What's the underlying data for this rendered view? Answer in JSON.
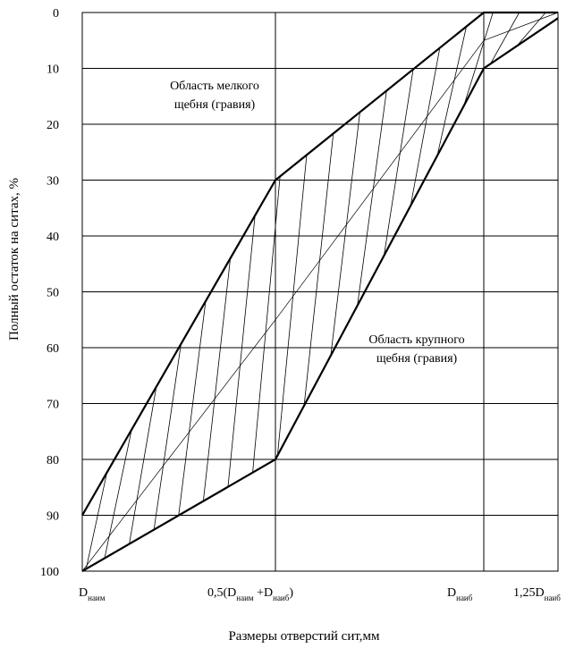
{
  "chart_data": {
    "type": "line",
    "title": "",
    "xlabel": "Размеры отверстий сит,мм",
    "ylabel": "Полный остаток на ситах, %",
    "y_reversed": true,
    "ylim": [
      0,
      100
    ],
    "yticks": [
      "0",
      "10",
      "20",
      "30",
      "40",
      "50",
      "60",
      "70",
      "80",
      "90",
      "100"
    ],
    "xticks": [
      {
        "main": "D",
        "sub": "наим",
        "after": ""
      },
      {
        "main": "0,5(D",
        "sub": "наим",
        "after": " +D",
        "sub2": "наиб",
        "after2": ")"
      },
      {
        "main": "D",
        "sub": "наиб",
        "after": ""
      },
      {
        "main": "1,25D",
        "sub": "наиб",
        "after": ""
      }
    ],
    "x_positions": [
      0,
      1,
      2,
      2.36
    ],
    "series": [
      {
        "points": [
          [
            0,
            90
          ],
          [
            1,
            30
          ],
          [
            2,
            0
          ],
          [
            2.36,
            0
          ]
        ]
      },
      {
        "points": [
          [
            0,
            100
          ],
          [
            1,
            80
          ],
          [
            2,
            10
          ],
          [
            2.36,
            1
          ]
        ]
      },
      {
        "points": [
          [
            0,
            100
          ],
          [
            1,
            55
          ],
          [
            2,
            5
          ],
          [
            2.36,
            0
          ]
        ]
      }
    ],
    "grid": true,
    "annotations": [
      {
        "lines": [
          "Область мелкого",
          "щебня (гравия)"
        ]
      },
      {
        "lines": [
          "Область крупного",
          "щебня (гравия)"
        ]
      }
    ]
  }
}
